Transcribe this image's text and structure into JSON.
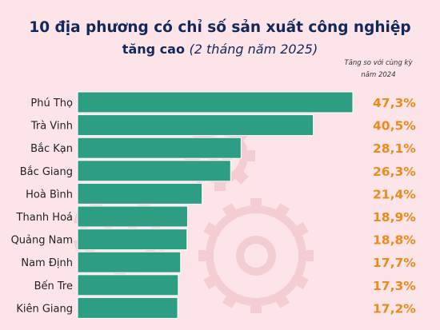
{
  "title_main": "10 địa phương có chỉ số sản xuất công nghiệp",
  "title_sub_bold": "tăng cao",
  "title_sub_italic": "(2 tháng năm 2025)",
  "note_line1": "Tăng so với cùng kỳ",
  "note_line2": "năm 2024",
  "colors": {
    "bar": "#2d9e83",
    "bar_edge": "#ffffff",
    "value": "#ec8a1c",
    "label": "#222222",
    "background": "#fce4e8",
    "title": "#12285a"
  },
  "chart_data": {
    "type": "bar",
    "orientation": "horizontal",
    "title": "10 địa phương có chỉ số sản xuất công nghiệp tăng cao (2 tháng năm 2025)",
    "categories": [
      "Phú Thọ",
      "Trà Vinh",
      "Bắc Kạn",
      "Bắc Giang",
      "Hoà Bình",
      "Thanh Hoá",
      "Quảng Nam",
      "Nam Định",
      "Bến Tre",
      "Kiên Giang"
    ],
    "values": [
      47.3,
      40.5,
      28.1,
      26.3,
      21.4,
      18.9,
      18.8,
      17.7,
      17.3,
      17.2
    ],
    "value_labels": [
      "47,3%",
      "40,5%",
      "28,1%",
      "26,3%",
      "21,4%",
      "18,9%",
      "18,8%",
      "17,7%",
      "17,3%",
      "17,2%"
    ],
    "grid": false,
    "legend": "none"
  }
}
